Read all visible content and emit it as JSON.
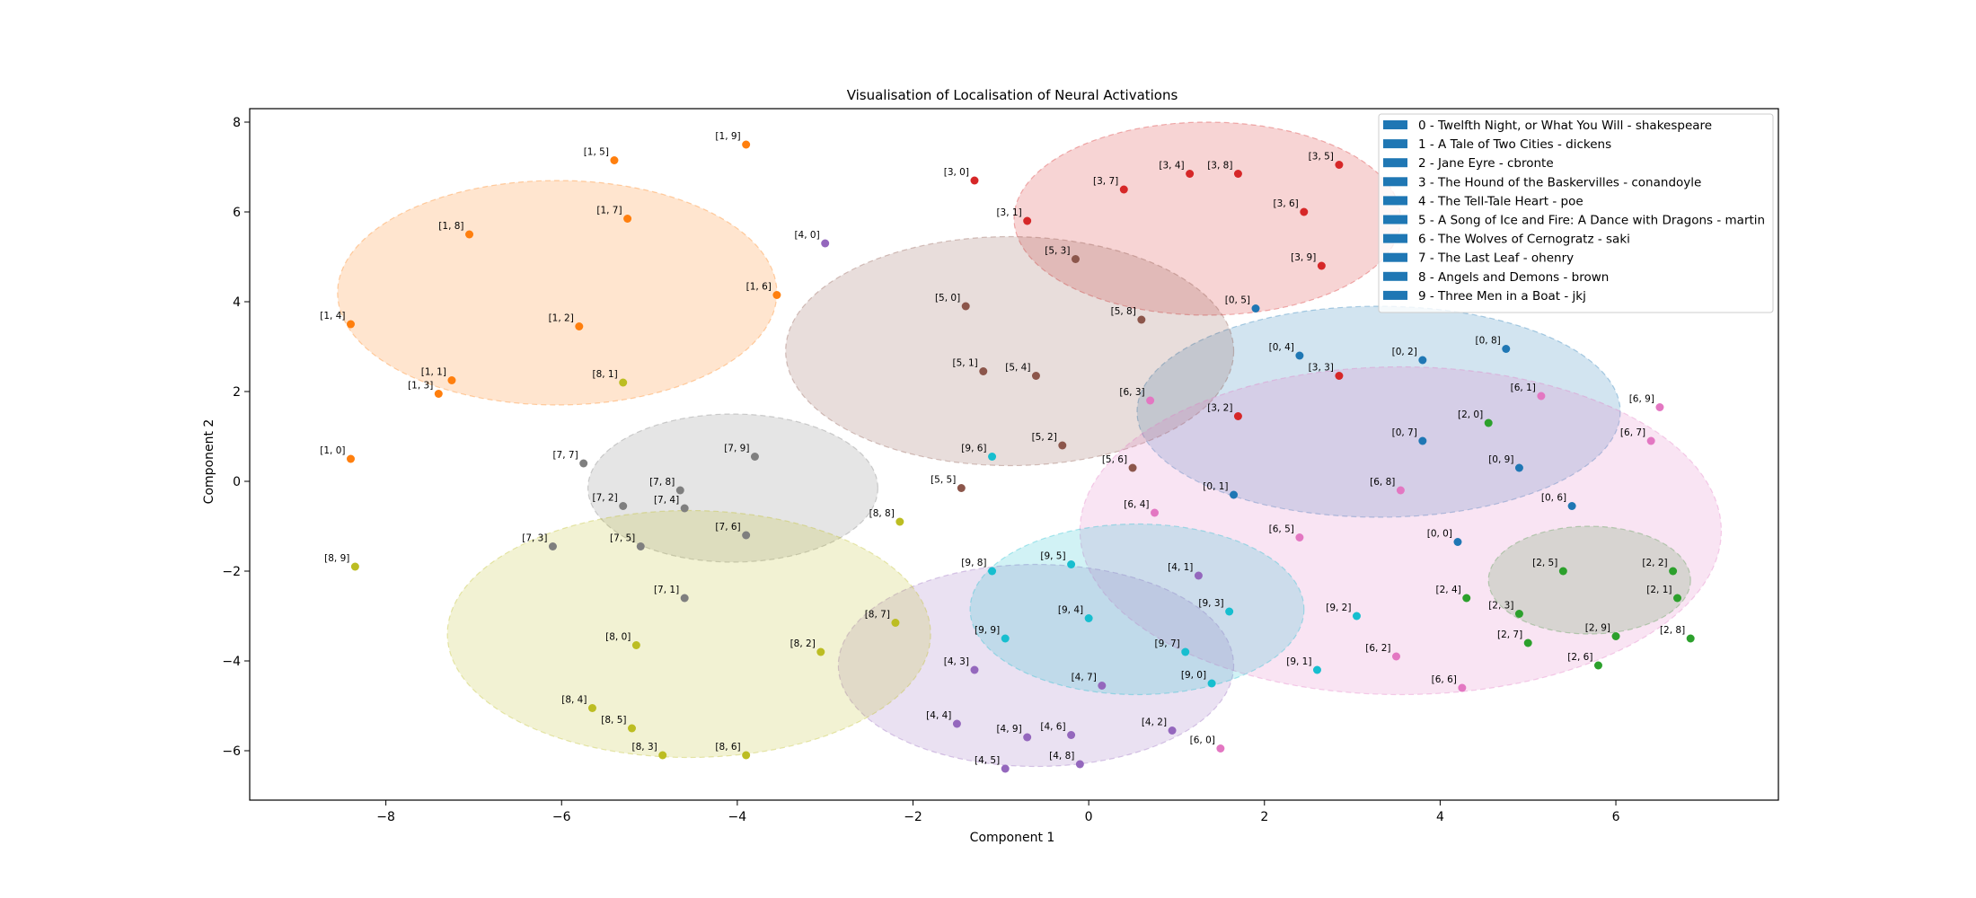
{
  "chart_data": {
    "type": "scatter",
    "title": "Visualisation of Localisation of Neural Activations",
    "xlabel": "Component 1",
    "ylabel": "Component 2",
    "xlim": [
      -9.55,
      7.85
    ],
    "ylim": [
      -7.1,
      8.3
    ],
    "xticks": [
      -8,
      -6,
      -4,
      -2,
      0,
      2,
      4,
      6
    ],
    "yticks": [
      -6,
      -4,
      -2,
      0,
      2,
      4,
      6,
      8
    ],
    "grid": false,
    "legend_position": "top-right",
    "legend_color": "#1f77b4",
    "legend": [
      "0 - Twelfth Night, or What You Will - shakespeare",
      "1 - A Tale of Two Cities - dickens",
      "2 - Jane Eyre - cbronte",
      "3 - The Hound of the Baskervilles - conandoyle",
      "4 - The Tell-Tale Heart - poe",
      "5 - A Song of Ice and Fire: A Dance with Dragons - martin",
      "6 - The Wolves of Cernogratz - saki",
      "7 - The Last Leaf - ohenry",
      "8 - Angels and Demons - brown",
      "9 - Three Men in a Boat - jkj"
    ],
    "colors": [
      "#1f77b4",
      "#ff7f0e",
      "#2ca02c",
      "#d62728",
      "#9467bd",
      "#8c564b",
      "#e377c2",
      "#7f7f7f",
      "#bcbd22",
      "#17becf"
    ],
    "clusters": [
      {
        "group": 0,
        "cx": 3.3,
        "cy": 1.55,
        "rx": 2.75,
        "ry": 2.35
      },
      {
        "group": 1,
        "cx": -6.05,
        "cy": 4.2,
        "rx": 2.5,
        "ry": 2.5
      },
      {
        "group": 2,
        "cx": 5.7,
        "cy": -2.2,
        "rx": 1.15,
        "ry": 1.2
      },
      {
        "group": 3,
        "cx": 1.35,
        "cy": 5.85,
        "rx": 2.2,
        "ry": 2.15
      },
      {
        "group": 4,
        "cx": -0.6,
        "cy": -4.1,
        "rx": 2.25,
        "ry": 2.25
      },
      {
        "group": 5,
        "cx": -0.9,
        "cy": 2.9,
        "rx": 2.55,
        "ry": 2.55
      },
      {
        "group": 6,
        "cx": 3.55,
        "cy": -1.1,
        "rx": 3.65,
        "ry": 3.65
      },
      {
        "group": 7,
        "cx": -4.05,
        "cy": -0.15,
        "rx": 1.65,
        "ry": 1.65
      },
      {
        "group": 8,
        "cx": -4.55,
        "cy": -3.4,
        "rx": 2.75,
        "ry": 2.75
      },
      {
        "group": 9,
        "cx": 0.55,
        "cy": -2.85,
        "rx": 1.9,
        "ry": 1.9
      }
    ],
    "points": [
      {
        "label": "[0, 0]",
        "group": 0,
        "x": 4.2,
        "y": -1.35
      },
      {
        "label": "[0, 1]",
        "group": 0,
        "x": 1.65,
        "y": -0.3
      },
      {
        "label": "[0, 2]",
        "group": 0,
        "x": 3.8,
        "y": 2.7
      },
      {
        "label": "[0, 4]",
        "group": 0,
        "x": 2.4,
        "y": 2.8
      },
      {
        "label": "[0, 5]",
        "group": 0,
        "x": 1.9,
        "y": 3.85
      },
      {
        "label": "[0, 6]",
        "group": 0,
        "x": 5.5,
        "y": -0.55
      },
      {
        "label": "[0, 7]",
        "group": 0,
        "x": 3.8,
        "y": 0.9
      },
      {
        "label": "[0, 8]",
        "group": 0,
        "x": 4.75,
        "y": 2.95
      },
      {
        "label": "[0, 9]",
        "group": 0,
        "x": 4.9,
        "y": 0.3
      },
      {
        "label": "[1, 0]",
        "group": 1,
        "x": -8.4,
        "y": 0.5
      },
      {
        "label": "[1, 1]",
        "group": 1,
        "x": -7.25,
        "y": 2.25
      },
      {
        "label": "[1, 2]",
        "group": 1,
        "x": -5.8,
        "y": 3.45
      },
      {
        "label": "[1, 3]",
        "group": 1,
        "x": -7.4,
        "y": 1.95
      },
      {
        "label": "[1, 4]",
        "group": 1,
        "x": -8.4,
        "y": 3.5
      },
      {
        "label": "[1, 5]",
        "group": 1,
        "x": -5.4,
        "y": 7.15
      },
      {
        "label": "[1, 6]",
        "group": 1,
        "x": -3.55,
        "y": 4.15
      },
      {
        "label": "[1, 7]",
        "group": 1,
        "x": -5.25,
        "y": 5.85
      },
      {
        "label": "[1, 8]",
        "group": 1,
        "x": -7.05,
        "y": 5.5
      },
      {
        "label": "[1, 9]",
        "group": 1,
        "x": -3.9,
        "y": 7.5
      },
      {
        "label": "[2, 0]",
        "group": 2,
        "x": 4.55,
        "y": 1.3
      },
      {
        "label": "[2, 1]",
        "group": 2,
        "x": 6.7,
        "y": -2.6
      },
      {
        "label": "[2, 2]",
        "group": 2,
        "x": 6.65,
        "y": -2.0
      },
      {
        "label": "[2, 3]",
        "group": 2,
        "x": 4.9,
        "y": -2.95
      },
      {
        "label": "[2, 4]",
        "group": 2,
        "x": 4.3,
        "y": -2.6
      },
      {
        "label": "[2, 5]",
        "group": 2,
        "x": 5.4,
        "y": -2.0
      },
      {
        "label": "[2, 6]",
        "group": 2,
        "x": 5.8,
        "y": -4.1
      },
      {
        "label": "[2, 7]",
        "group": 2,
        "x": 5.0,
        "y": -3.6
      },
      {
        "label": "[2, 8]",
        "group": 2,
        "x": 6.85,
        "y": -3.5
      },
      {
        "label": "[2, 9]",
        "group": 2,
        "x": 6.0,
        "y": -3.45
      },
      {
        "label": "[3, 0]",
        "group": 3,
        "x": -1.3,
        "y": 6.7
      },
      {
        "label": "[3, 1]",
        "group": 3,
        "x": -0.7,
        "y": 5.8
      },
      {
        "label": "[3, 2]",
        "group": 3,
        "x": 1.7,
        "y": 1.45
      },
      {
        "label": "[3, 3]",
        "group": 3,
        "x": 2.85,
        "y": 2.35
      },
      {
        "label": "[3, 4]",
        "group": 3,
        "x": 1.15,
        "y": 6.85
      },
      {
        "label": "[3, 5]",
        "group": 3,
        "x": 2.85,
        "y": 7.05
      },
      {
        "label": "[3, 6]",
        "group": 3,
        "x": 2.45,
        "y": 6.0
      },
      {
        "label": "[3, 7]",
        "group": 3,
        "x": 0.4,
        "y": 6.5
      },
      {
        "label": "[3, 8]",
        "group": 3,
        "x": 1.7,
        "y": 6.85
      },
      {
        "label": "[3, 9]",
        "group": 3,
        "x": 2.65,
        "y": 4.8
      },
      {
        "label": "[4, 0]",
        "group": 4,
        "x": -3.0,
        "y": 5.3
      },
      {
        "label": "[4, 1]",
        "group": 4,
        "x": 1.25,
        "y": -2.1
      },
      {
        "label": "[4, 2]",
        "group": 4,
        "x": 0.95,
        "y": -5.55
      },
      {
        "label": "[4, 3]",
        "group": 4,
        "x": -1.3,
        "y": -4.2
      },
      {
        "label": "[4, 4]",
        "group": 4,
        "x": -1.5,
        "y": -5.4
      },
      {
        "label": "[4, 5]",
        "group": 4,
        "x": -0.95,
        "y": -6.4
      },
      {
        "label": "[4, 6]",
        "group": 4,
        "x": -0.2,
        "y": -5.65
      },
      {
        "label": "[4, 7]",
        "group": 4,
        "x": 0.15,
        "y": -4.55
      },
      {
        "label": "[4, 8]",
        "group": 4,
        "x": -0.1,
        "y": -6.3
      },
      {
        "label": "[4, 9]",
        "group": 4,
        "x": -0.7,
        "y": -5.7
      },
      {
        "label": "[5, 0]",
        "group": 5,
        "x": -1.4,
        "y": 3.9
      },
      {
        "label": "[5, 1]",
        "group": 5,
        "x": -1.2,
        "y": 2.45
      },
      {
        "label": "[5, 2]",
        "group": 5,
        "x": -0.3,
        "y": 0.8
      },
      {
        "label": "[5, 3]",
        "group": 5,
        "x": -0.15,
        "y": 4.95
      },
      {
        "label": "[5, 4]",
        "group": 5,
        "x": -0.6,
        "y": 2.35
      },
      {
        "label": "[5, 5]",
        "group": 5,
        "x": -1.45,
        "y": -0.15
      },
      {
        "label": "[5, 6]",
        "group": 5,
        "x": 0.5,
        "y": 0.3
      },
      {
        "label": "[5, 8]",
        "group": 5,
        "x": 0.6,
        "y": 3.6
      },
      {
        "label": "[6, 0]",
        "group": 6,
        "x": 1.5,
        "y": -5.95
      },
      {
        "label": "[6, 1]",
        "group": 6,
        "x": 5.15,
        "y": 1.9
      },
      {
        "label": "[6, 2]",
        "group": 6,
        "x": 3.5,
        "y": -3.9
      },
      {
        "label": "[6, 3]",
        "group": 6,
        "x": 0.7,
        "y": 1.8
      },
      {
        "label": "[6, 4]",
        "group": 6,
        "x": 0.75,
        "y": -0.7
      },
      {
        "label": "[6, 5]",
        "group": 6,
        "x": 2.4,
        "y": -1.25
      },
      {
        "label": "[6, 6]",
        "group": 6,
        "x": 4.25,
        "y": -4.6
      },
      {
        "label": "[6, 7]",
        "group": 6,
        "x": 6.4,
        "y": 0.9
      },
      {
        "label": "[6, 8]",
        "group": 6,
        "x": 3.55,
        "y": -0.2
      },
      {
        "label": "[6, 9]",
        "group": 6,
        "x": 6.5,
        "y": 1.65
      },
      {
        "label": "[7, 1]",
        "group": 7,
        "x": -4.6,
        "y": -2.6
      },
      {
        "label": "[7, 2]",
        "group": 7,
        "x": -5.3,
        "y": -0.55
      },
      {
        "label": "[7, 3]",
        "group": 7,
        "x": -6.1,
        "y": -1.45
      },
      {
        "label": "[7, 4]",
        "group": 7,
        "x": -4.6,
        "y": -0.6
      },
      {
        "label": "[7, 5]",
        "group": 7,
        "x": -5.1,
        "y": -1.45
      },
      {
        "label": "[7, 6]",
        "group": 7,
        "x": -3.9,
        "y": -1.2
      },
      {
        "label": "[7, 7]",
        "group": 7,
        "x": -5.75,
        "y": 0.4
      },
      {
        "label": "[7, 8]",
        "group": 7,
        "x": -4.65,
        "y": -0.2
      },
      {
        "label": "[7, 9]",
        "group": 7,
        "x": -3.8,
        "y": 0.55
      },
      {
        "label": "[8, 0]",
        "group": 8,
        "x": -5.15,
        "y": -3.65
      },
      {
        "label": "[8, 1]",
        "group": 8,
        "x": -5.3,
        "y": 2.2
      },
      {
        "label": "[8, 2]",
        "group": 8,
        "x": -3.05,
        "y": -3.8
      },
      {
        "label": "[8, 3]",
        "group": 8,
        "x": -4.85,
        "y": -6.1
      },
      {
        "label": "[8, 4]",
        "group": 8,
        "x": -5.65,
        "y": -5.05
      },
      {
        "label": "[8, 5]",
        "group": 8,
        "x": -5.2,
        "y": -5.5
      },
      {
        "label": "[8, 6]",
        "group": 8,
        "x": -3.9,
        "y": -6.1
      },
      {
        "label": "[8, 7]",
        "group": 8,
        "x": -2.2,
        "y": -3.15
      },
      {
        "label": "[8, 8]",
        "group": 8,
        "x": -2.15,
        "y": -0.9
      },
      {
        "label": "[8, 9]",
        "group": 8,
        "x": -8.35,
        "y": -1.9
      },
      {
        "label": "[9, 0]",
        "group": 9,
        "x": 1.4,
        "y": -4.5
      },
      {
        "label": "[9, 1]",
        "group": 9,
        "x": 2.6,
        "y": -4.2
      },
      {
        "label": "[9, 2]",
        "group": 9,
        "x": 3.05,
        "y": -3.0
      },
      {
        "label": "[9, 3]",
        "group": 9,
        "x": 1.6,
        "y": -2.9
      },
      {
        "label": "[9, 4]",
        "group": 9,
        "x": 0.0,
        "y": -3.05
      },
      {
        "label": "[9, 5]",
        "group": 9,
        "x": -0.2,
        "y": -1.85
      },
      {
        "label": "[9, 6]",
        "group": 9,
        "x": -1.1,
        "y": 0.55
      },
      {
        "label": "[9, 7]",
        "group": 9,
        "x": 1.1,
        "y": -3.8
      },
      {
        "label": "[9, 8]",
        "group": 9,
        "x": -1.1,
        "y": -2.0
      },
      {
        "label": "[9, 9]",
        "group": 9,
        "x": -0.95,
        "y": -3.5
      }
    ]
  }
}
